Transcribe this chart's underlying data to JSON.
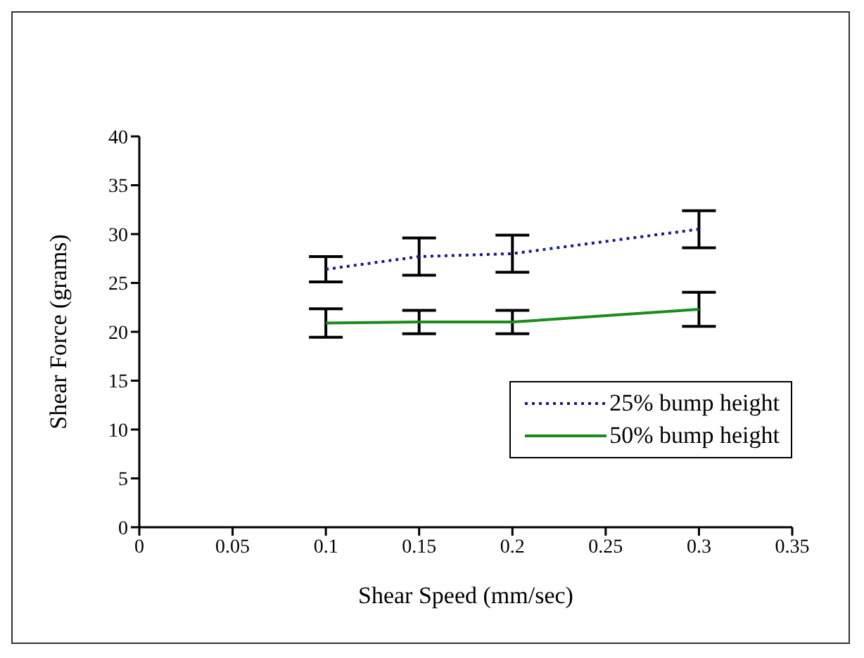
{
  "chart_data": {
    "type": "line",
    "xlabel": "Shear Speed (mm/sec)",
    "ylabel": "Shear Force (grams)",
    "x": [
      0.1,
      0.15,
      0.2,
      0.3
    ],
    "series": [
      {
        "name": "25% bump height",
        "color": "#1a1a8c",
        "line_style": "dotted",
        "values": [
          26.4,
          27.7,
          28.0,
          30.5
        ],
        "errors": [
          1.3,
          1.9,
          1.9,
          1.9
        ]
      },
      {
        "name": "50% bump height",
        "color": "#1a8c1a",
        "line_style": "solid",
        "values": [
          20.9,
          21.0,
          21.0,
          22.3
        ],
        "errors": [
          1.45,
          1.2,
          1.2,
          1.75
        ]
      }
    ],
    "xlim": [
      0,
      0.35
    ],
    "xticks": [
      0,
      0.05,
      0.1,
      0.15,
      0.2,
      0.25,
      0.3,
      0.35
    ],
    "ylim": [
      0,
      40
    ],
    "yticks": [
      0,
      5,
      10,
      15,
      20,
      25,
      30,
      35,
      40
    ],
    "grid": false,
    "legend": "bottom right",
    "marker": "none"
  }
}
